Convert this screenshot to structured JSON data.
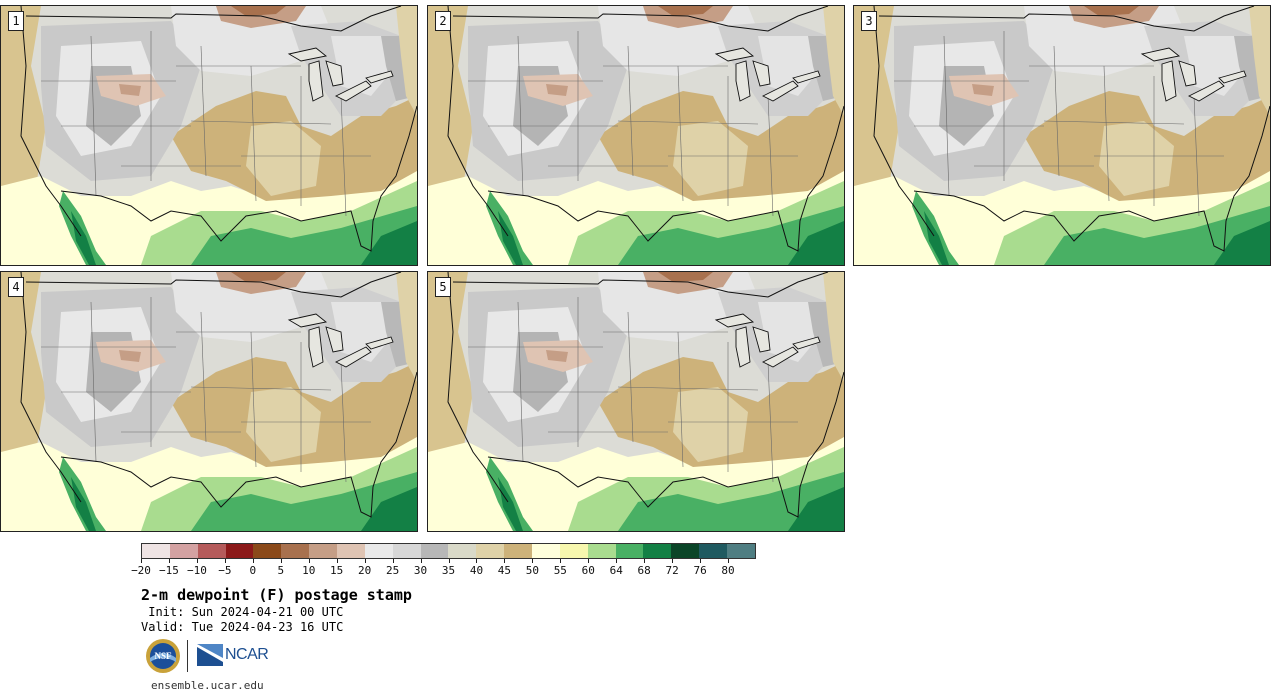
{
  "title": "2-m dewpoint (F) postage stamp",
  "init": " Init: Sun 2024-04-21 00 UTC",
  "valid": "Valid: Tue 2024-04-23 16 UTC",
  "website": "ensemble.ucar.edu",
  "logos": {
    "nsf": "NSF",
    "ncar": "NCAR"
  },
  "panels": [
    {
      "label": "1"
    },
    {
      "label": "2"
    },
    {
      "label": "3"
    },
    {
      "label": "4"
    },
    {
      "label": "5"
    }
  ],
  "colorbar": {
    "tick_labels": [
      "−20",
      "−15",
      "−10",
      "−5",
      "0",
      "5",
      "10",
      "15",
      "20",
      "25",
      "30",
      "35",
      "40",
      "45",
      "50",
      "55",
      "60",
      "64",
      "68",
      "72",
      "76",
      "80"
    ],
    "colors": [
      "#efe4e4",
      "#d4a2a2",
      "#b55b5b",
      "#8c1a1a",
      "#8b4a1a",
      "#a8714e",
      "#c59e86",
      "#dfc4b3",
      "#e9e9e9",
      "#d7d7d7",
      "#b7b7b7",
      "#d9d9c8",
      "#dfd2a8",
      "#cdb27a",
      "#ffffdc",
      "#f7f7ae",
      "#a9dc8f",
      "#49b064",
      "#138045",
      "#0b4528",
      "#1f5a60",
      "#4f7e82"
    ]
  }
}
